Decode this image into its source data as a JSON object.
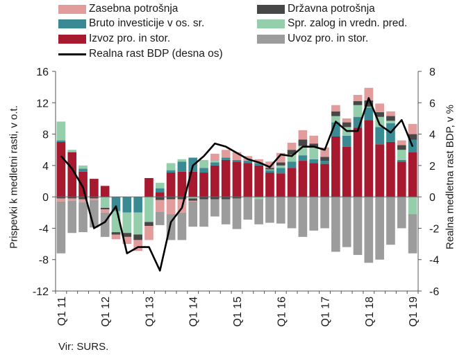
{
  "chart_data": {
    "type": "bar",
    "stacked": true,
    "categories": [
      "Q1 11",
      "Q2 11",
      "Q3 11",
      "Q4 11",
      "Q1 12",
      "Q2 12",
      "Q3 12",
      "Q4 12",
      "Q1 13",
      "Q2 13",
      "Q3 13",
      "Q4 13",
      "Q1 14",
      "Q2 14",
      "Q3 14",
      "Q4 14",
      "Q1 15",
      "Q2 15",
      "Q3 15",
      "Q4 15",
      "Q1 16",
      "Q2 16",
      "Q3 16",
      "Q4 16",
      "Q1 17",
      "Q2 17",
      "Q3 17",
      "Q4 17",
      "Q1 18",
      "Q2 18",
      "Q3 18",
      "Q4 18",
      "Q1 19"
    ],
    "x_tick_labels": [
      "Q1 11",
      "Q1 12",
      "Q1 13",
      "Q1 14",
      "Q1 15",
      "Q1 16",
      "Q1 17",
      "Q1 18",
      "Q1 19"
    ],
    "ylabel": "Prispevki k medletni rasti, v o.t.",
    "y2label": "Realna medletna rast BDP, v %",
    "ylim": [
      -12,
      16
    ],
    "y2lim": [
      -6,
      8
    ],
    "yticks": [
      -12,
      -8,
      -4,
      0,
      4,
      8,
      12,
      16
    ],
    "y2ticks": [
      -6,
      -4,
      -2,
      0,
      2,
      4,
      6,
      8
    ],
    "legend_position": "top",
    "series": [
      {
        "name": "Izvoz pro. in stor.",
        "color": "#a6192e",
        "values": [
          7.0,
          5.7,
          3.2,
          2.3,
          1.4,
          0,
          0,
          0,
          2.4,
          0.6,
          3.1,
          3.2,
          3.2,
          3.1,
          4.0,
          4.7,
          4.5,
          4.3,
          4.0,
          3.1,
          3.0,
          3.7,
          4.6,
          4.3,
          4.2,
          7.7,
          6.4,
          8.8,
          9.8,
          6.7,
          7.0,
          4.5,
          5.7
        ]
      },
      {
        "name": "Bruto investicije v os. sr.",
        "color": "#3a8a93",
        "values": [
          0.2,
          0,
          0.4,
          0,
          0,
          -1.8,
          -2.0,
          -2.0,
          0,
          0.5,
          0.3,
          1.3,
          1.8,
          0.6,
          0.4,
          0.3,
          0.2,
          0.3,
          0.3,
          0.3,
          0.7,
          0.8,
          0.7,
          0.5,
          0.4,
          1.8,
          1.4,
          1.4,
          1.6,
          2.2,
          2.4,
          0.2,
          1.6
        ]
      },
      {
        "name": "Spr. zalog in vredn. pred.",
        "color": "#94ceaa",
        "values": [
          2.4,
          0.3,
          0.4,
          0,
          -1.4,
          -2.7,
          -2.6,
          -2.8,
          -3.2,
          0.7,
          0.9,
          0.3,
          -0.2,
          1.0,
          0.2,
          0,
          0,
          0,
          -0.3,
          0.1,
          0.3,
          0.9,
          1.2,
          1.5,
          0,
          0.8,
          1.1,
          1.5,
          0.1,
          1.3,
          0.3,
          1.3,
          -2.2
        ]
      },
      {
        "name": "Državna potrošnja",
        "color": "#474747",
        "values": [
          -0.2,
          -0.2,
          -0.3,
          -0.2,
          -0.2,
          -0.3,
          -0.5,
          -0.7,
          -0.5,
          -0.4,
          -0.3,
          -0.3,
          -0.3,
          -0.3,
          -0.3,
          -0.3,
          -0.2,
          0,
          0,
          0.2,
          0.4,
          0.6,
          0.8,
          0.5,
          0.5,
          0.6,
          0.6,
          0.5,
          0.8,
          0.6,
          0.6,
          0.6,
          0.7
        ]
      },
      {
        "name": "Zasebna potrošnja",
        "color": "#e39c9c",
        "values": [
          -0.4,
          -0.3,
          -0.4,
          -0.2,
          -0.4,
          -0.6,
          -0.9,
          -1.4,
          -1.8,
          -1.5,
          -1.9,
          -1.7,
          -0.1,
          0,
          0.9,
          1.0,
          1.0,
          0.6,
          0.5,
          0.8,
          1.2,
          0.9,
          1.2,
          1.0,
          1.2,
          0.8,
          0.5,
          0.8,
          1.6,
          1.1,
          0.6,
          0.6,
          1.3
        ]
      },
      {
        "name": "Uvoz pro. in stor.",
        "color": "#9c9c9c",
        "values": [
          -6.6,
          -4.1,
          -3.8,
          -3.5,
          -3.1,
          0,
          0,
          0,
          0,
          -1.7,
          -3.3,
          -3.5,
          -3.2,
          -3.5,
          -2.2,
          -3.2,
          -3.9,
          -2.9,
          -3.2,
          -3.3,
          -3.4,
          -4.0,
          -5.1,
          -4.3,
          -4.0,
          -7.0,
          -6.4,
          -7.4,
          -8.4,
          -8.0,
          -6.1,
          -4.0,
          -5.0
        ]
      },
      {
        "name": "Realna rast BDP (desna os)",
        "color": "#000000",
        "type": "line",
        "axis": "right",
        "values": [
          2.6,
          1.8,
          0.6,
          -2.0,
          -1.6,
          -0.6,
          -3.6,
          -3.2,
          -3.2,
          -4.7,
          -1.6,
          -0.7,
          2.0,
          2.6,
          3.4,
          3.2,
          2.8,
          2.4,
          2.2,
          1.9,
          2.7,
          2.6,
          3.2,
          3.2,
          3.0,
          4.8,
          4.2,
          4.2,
          6.3,
          4.6,
          4.1,
          4.9,
          3.2
        ]
      }
    ]
  },
  "legend": [
    {
      "label": "Zasebna potrošnja",
      "color": "#e39c9c",
      "kind": "box"
    },
    {
      "label": "Državna potrošnja",
      "color": "#474747",
      "kind": "box"
    },
    {
      "label": "Bruto investicije v os. sr.",
      "color": "#3a8a93",
      "kind": "box"
    },
    {
      "label": "Spr. zalog in vredn. pred.",
      "color": "#94ceaa",
      "kind": "box"
    },
    {
      "label": "Izvoz pro. in stor.",
      "color": "#a6192e",
      "kind": "box"
    },
    {
      "label": "Uvoz pro. in stor.",
      "color": "#9c9c9c",
      "kind": "box"
    },
    {
      "label": "Realna rast BDP (desna os)",
      "color": "#000000",
      "kind": "line"
    }
  ],
  "source": "Vir: SURS."
}
